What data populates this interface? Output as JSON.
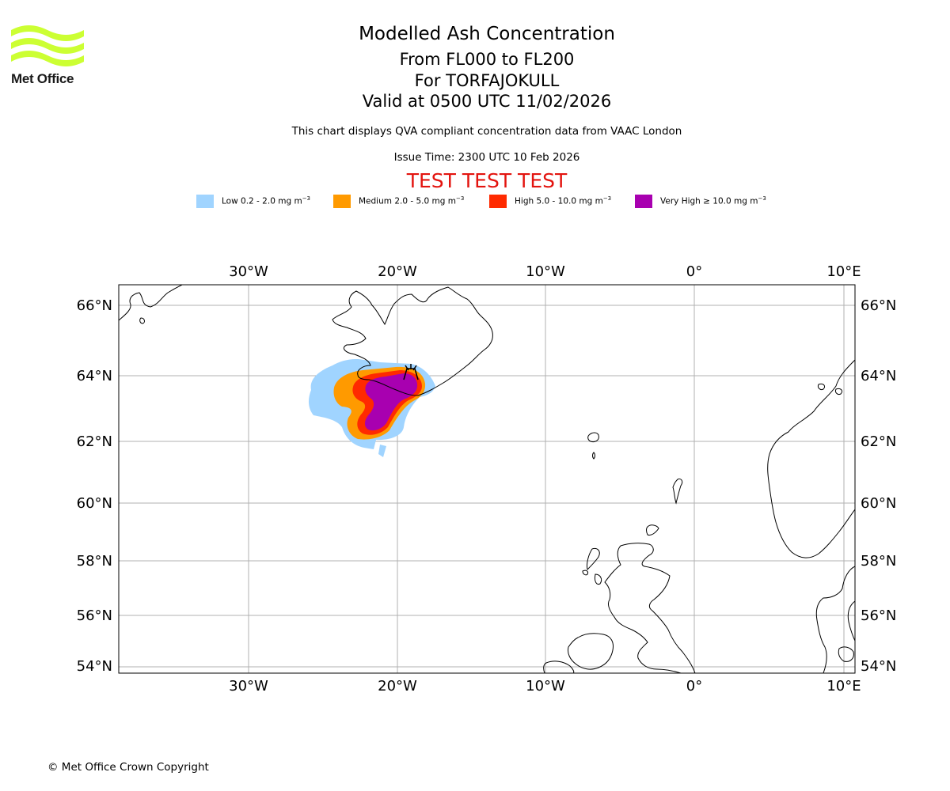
{
  "logo": {
    "text": "Met Office",
    "color": "#ccff33"
  },
  "header": {
    "title": "Modelled Ash Concentration",
    "levels": "From FL000 to FL200",
    "volcano": "For TORFAJOKULL",
    "valid": "Valid at 0500 UTC 11/02/2026",
    "subtitle": "This chart displays QVA compliant concentration data from VAAC London",
    "issue": "Issue Time: 2300 UTC 10 Feb 2026",
    "test_banner": "TEST TEST TEST"
  },
  "legend": [
    {
      "name": "Low",
      "label": "Low 0.2 - 2.0 mg m",
      "color": "#a0d4ff"
    },
    {
      "name": "Medium",
      "label": "Medium 2.0 - 5.0 mg m",
      "color": "#ff9a00"
    },
    {
      "name": "High",
      "label": "High 5.0 - 10.0 mg m",
      "color": "#ff2a00"
    },
    {
      "name": "Very High",
      "label": "Very High ≥ 10.0 mg m",
      "color": "#a800b0"
    }
  ],
  "legend_unit_exponent": "−3",
  "map": {
    "lon_labels": [
      "30°W",
      "20°W",
      "10°W",
      "0°",
      "10°E"
    ],
    "lat_labels": [
      "66°N",
      "64°N",
      "62°N",
      "60°N",
      "58°N",
      "56°N",
      "54°N"
    ]
  },
  "footer": {
    "copyright": "© Met Office Crown Copyright"
  }
}
